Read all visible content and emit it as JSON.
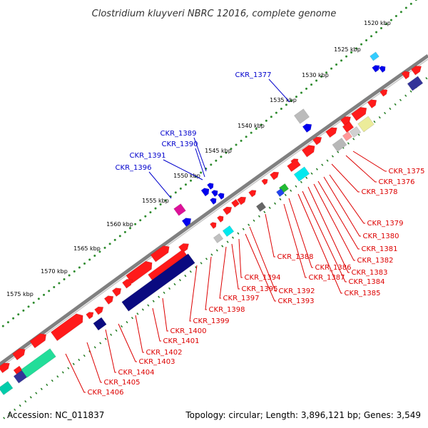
{
  "title": "Clostridium kluyveri NBRC 12016, complete genome",
  "footer": {
    "accession": "Accession: NC_011837",
    "stats": "Topology: circular; Length: 3,896,121 bp; Genes: 3,549"
  },
  "colors": {
    "backbone": "#808080",
    "outer_dots": "#2e8b2e",
    "inner_dots": "#1f7a1f",
    "label_blue": "#0000cc",
    "label_red": "#dd0000"
  },
  "ticks": [
    "1520 kbp",
    "1525 kbp",
    "1530 kbp",
    "1535 kbp",
    "1540 kbp",
    "1545 kbp",
    "1550 kbp",
    "1555 kbp",
    "1560 kbp",
    "1565 kbp",
    "1570 kbp",
    "1575 kbp"
  ],
  "labels_blue": [
    "CKR_1377",
    "CKR_1389",
    "CKR_1390",
    "CKR_1391",
    "CKR_1396"
  ],
  "labels_red": [
    "CKR_1375",
    "CKR_1376",
    "CKR_1378",
    "CKR_1379",
    "CKR_1380",
    "CKR_1381",
    "CKR_1382",
    "CKR_1383",
    "CKR_1384",
    "CKR_1385",
    "CKR_1386",
    "CKR_1387",
    "CKR_1388",
    "CKR_1392",
    "CKR_1393",
    "CKR_1394",
    "CKR_1395",
    "CKR_1397",
    "CKR_1398",
    "CKR_1399",
    "CKR_1400",
    "CKR_1401",
    "CKR_1402",
    "CKR_1403",
    "CKR_1404",
    "CKR_1405",
    "CKR_1406"
  ]
}
